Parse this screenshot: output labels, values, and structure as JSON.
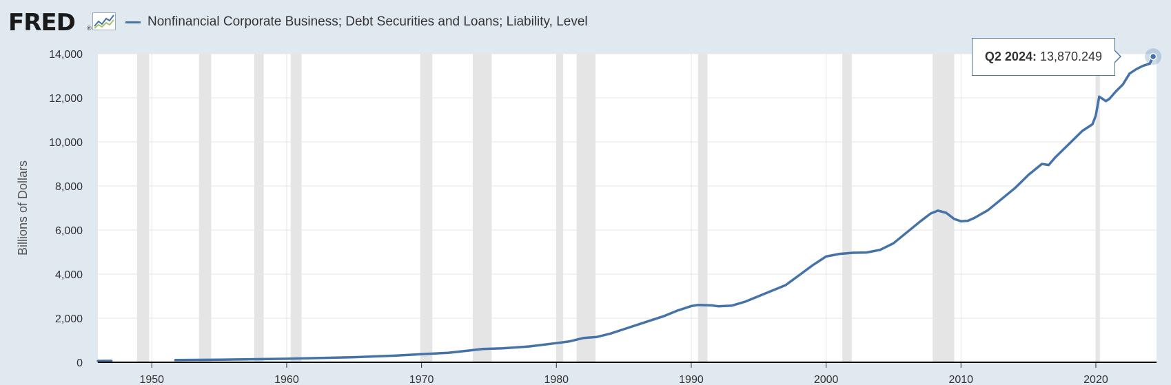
{
  "header": {
    "logo_text": "FRED",
    "logo_reg": "®",
    "logo_mark_icon": "line-chart-icon",
    "series_label": "Nonfinancial Corporate Business; Debt Securities and Loans; Liability, Level"
  },
  "tooltip": {
    "period": "Q2 2024:",
    "value": "13,870.249"
  },
  "colors": {
    "series": "#4572a7",
    "recession": "#e5e5e5",
    "background": "#e1e9f0",
    "plot": "#ffffff"
  },
  "chart_data": {
    "type": "line",
    "title": "",
    "xlabel": "",
    "ylabel": "Billions of Dollars",
    "xlim": [
      1946,
      2024.5
    ],
    "ylim": [
      0,
      14000
    ],
    "y_ticks": [
      0,
      2000,
      4000,
      6000,
      8000,
      10000,
      12000,
      14000
    ],
    "y_tick_labels": [
      "0",
      "2,000",
      "4,000",
      "6,000",
      "8,000",
      "10,000",
      "12,000",
      "14,000"
    ],
    "x_ticks": [
      1950,
      1960,
      1970,
      1980,
      1990,
      2000,
      2010,
      2020
    ],
    "x_tick_labels": [
      "1950",
      "1960",
      "1970",
      "1980",
      "1990",
      "2000",
      "2010",
      "2020"
    ],
    "grid": true,
    "legend": "top-left",
    "recessions": [
      [
        1948.9,
        1949.8
      ],
      [
        1953.5,
        1954.4
      ],
      [
        1957.6,
        1958.3
      ],
      [
        1960.3,
        1961.1
      ],
      [
        1969.9,
        1970.8
      ],
      [
        1973.8,
        1975.2
      ],
      [
        1980.0,
        1980.5
      ],
      [
        1981.5,
        1982.9
      ],
      [
        1990.5,
        1991.2
      ],
      [
        2001.2,
        2001.9
      ],
      [
        2007.9,
        2009.5
      ],
      [
        2020.0,
        2020.3
      ]
    ],
    "series": [
      {
        "name": "Nonfinancial Corporate Business; Debt Securities and Loans; Liability, Level",
        "segments": [
          [
            [
              1946.0,
              60
            ],
            [
              1946.5,
              62
            ],
            [
              1947.0,
              63
            ]
          ],
          [
            [
              1951.75,
              100
            ],
            [
              1955,
              120
            ],
            [
              1960,
              160
            ],
            [
              1965,
              230
            ],
            [
              1968,
              300
            ],
            [
              1970,
              370
            ],
            [
              1972,
              430
            ],
            [
              1973.5,
              530
            ],
            [
              1974.5,
              600
            ],
            [
              1976,
              630
            ],
            [
              1978,
              720
            ],
            [
              1980,
              870
            ],
            [
              1981,
              950
            ],
            [
              1982,
              1100
            ],
            [
              1983,
              1150
            ],
            [
              1984,
              1300
            ],
            [
              1985,
              1500
            ],
            [
              1986,
              1700
            ],
            [
              1987,
              1900
            ],
            [
              1988,
              2100
            ],
            [
              1989,
              2350
            ],
            [
              1990,
              2550
            ],
            [
              1990.5,
              2600
            ],
            [
              1991.5,
              2580
            ],
            [
              1992,
              2540
            ],
            [
              1993,
              2570
            ],
            [
              1994,
              2750
            ],
            [
              1995,
              3000
            ],
            [
              1996,
              3250
            ],
            [
              1997,
              3500
            ],
            [
              1998,
              3950
            ],
            [
              1999,
              4400
            ],
            [
              2000,
              4800
            ],
            [
              2001,
              4920
            ],
            [
              2002,
              4970
            ],
            [
              2003,
              4980
            ],
            [
              2004,
              5100
            ],
            [
              2005,
              5400
            ],
            [
              2006,
              5900
            ],
            [
              2007,
              6400
            ],
            [
              2007.75,
              6750
            ],
            [
              2008.3,
              6880
            ],
            [
              2008.9,
              6780
            ],
            [
              2009.5,
              6500
            ],
            [
              2010,
              6400
            ],
            [
              2010.5,
              6420
            ],
            [
              2011,
              6550
            ],
            [
              2012,
              6900
            ],
            [
              2013,
              7400
            ],
            [
              2014,
              7900
            ],
            [
              2015,
              8500
            ],
            [
              2016,
              9000
            ],
            [
              2016.5,
              8950
            ],
            [
              2017,
              9300
            ],
            [
              2018,
              9900
            ],
            [
              2018.5,
              10200
            ],
            [
              2019,
              10500
            ],
            [
              2019.75,
              10800
            ],
            [
              2020.0,
              11200
            ],
            [
              2020.25,
              12050
            ],
            [
              2020.75,
              11850
            ],
            [
              2021,
              11950
            ],
            [
              2021.5,
              12300
            ],
            [
              2022,
              12600
            ],
            [
              2022.5,
              13100
            ],
            [
              2023,
              13300
            ],
            [
              2023.5,
              13450
            ],
            [
              2024,
              13550
            ],
            [
              2024.25,
              13870.249
            ]
          ]
        ]
      }
    ]
  }
}
